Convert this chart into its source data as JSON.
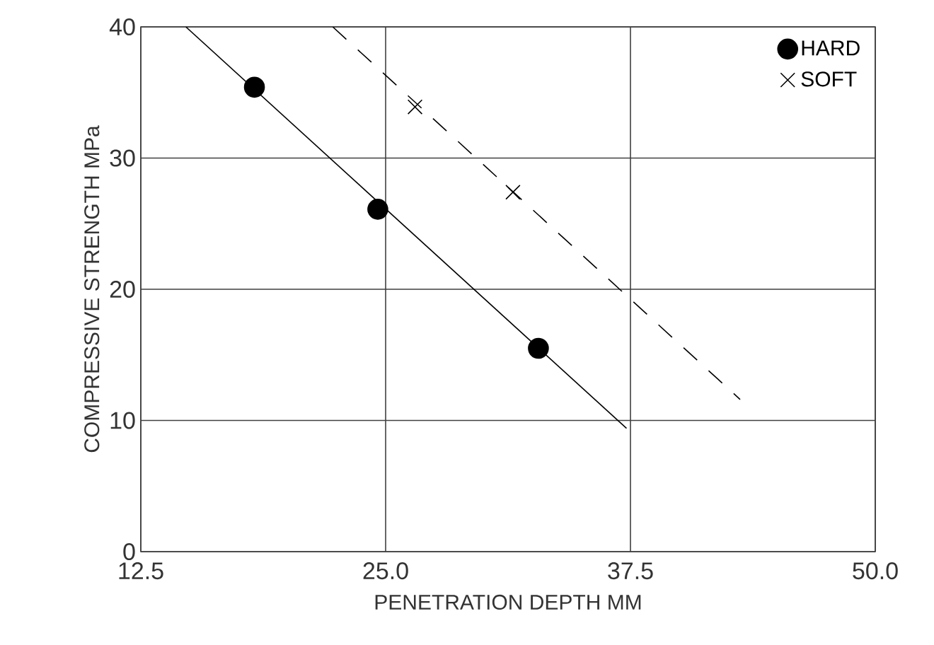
{
  "chart_data": {
    "type": "scatter",
    "xlabel": "PENETRATION DEPTH MM",
    "ylabel": "COMPRESSIVE STRENGTH MPa",
    "xlim": [
      12.5,
      50
    ],
    "xticks": [
      {
        "value": 12.5,
        "label": "12.5"
      },
      {
        "value": 25,
        "label": "25.0"
      },
      {
        "value": 37.5,
        "label": "37.5"
      },
      {
        "value": 50,
        "label": "50.0"
      }
    ],
    "ylim": [
      0,
      40
    ],
    "yticks": [
      0,
      10,
      20,
      30,
      40
    ],
    "grid": true,
    "legend": "top right",
    "series": [
      {
        "type": "line",
        "color": "#000000",
        "line_style": "solid",
        "x": [
          14.8,
          37.3
        ],
        "values": [
          40,
          9.4
        ]
      },
      {
        "name": "HARD",
        "color": "#000000",
        "marker": "circle",
        "x": [
          18.3,
          24.6,
          32.8
        ],
        "values": [
          35.4,
          26.1,
          15.5
        ]
      },
      {
        "type": "line",
        "color": "#000000",
        "line_style": "dashed",
        "x": [
          22.3,
          43.1
        ],
        "values": [
          40,
          11.6
        ]
      },
      {
        "name": "SOFT",
        "color": "#000000",
        "marker": "cross",
        "x": [
          26.5,
          31.5
        ],
        "values": [
          33.9,
          27.4
        ]
      }
    ]
  }
}
